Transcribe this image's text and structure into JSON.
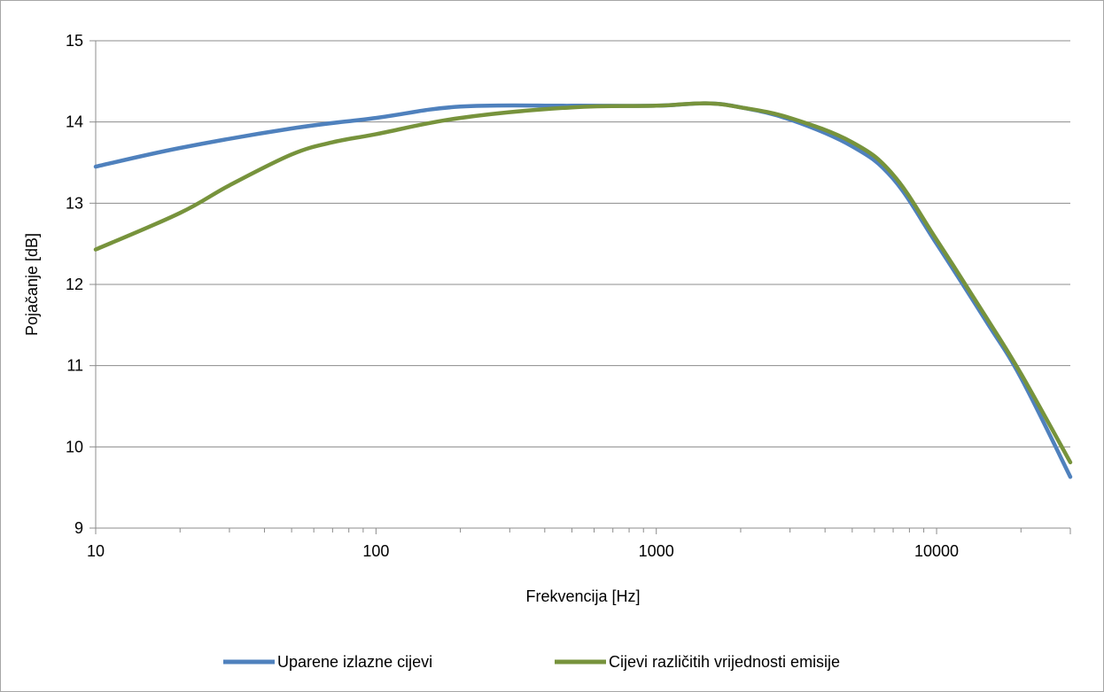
{
  "chart_data": {
    "type": "line",
    "title": "",
    "xlabel": "Frekvencija [Hz]",
    "ylabel": "Pojačanje [dB]",
    "x_scale": "log",
    "xlim": [
      10,
      30000
    ],
    "ylim": [
      9,
      15
    ],
    "x_ticks": [
      10,
      100,
      1000,
      10000
    ],
    "x_tick_labels": [
      "10",
      "100",
      "1000",
      "10000"
    ],
    "y_ticks": [
      9,
      10,
      11,
      12,
      13,
      14,
      15
    ],
    "y_tick_labels": [
      "9",
      "10",
      "11",
      "12",
      "13",
      "14",
      "15"
    ],
    "grid": "horizontal major",
    "legend_position": "bottom",
    "series": [
      {
        "name": "Uparene izlazne cijevi",
        "color": "#4f81bd",
        "x": [
          10,
          20,
          50,
          100,
          200,
          500,
          1000,
          1500,
          2000,
          3000,
          5000,
          7000,
          10000,
          15000,
          20000,
          30000
        ],
        "y": [
          13.45,
          13.68,
          13.92,
          14.05,
          14.19,
          14.2,
          14.2,
          14.23,
          14.18,
          14.03,
          13.7,
          13.3,
          12.5,
          11.55,
          10.85,
          9.63
        ]
      },
      {
        "name": "Cijevi različitih vrijednosti emisije",
        "color": "#77933c",
        "x": [
          10,
          20,
          30,
          50,
          70,
          100,
          200,
          500,
          1000,
          1500,
          2000,
          3000,
          5000,
          7000,
          10000,
          15000,
          20000,
          30000
        ],
        "y": [
          12.43,
          12.88,
          13.22,
          13.6,
          13.75,
          13.85,
          14.05,
          14.18,
          14.2,
          14.23,
          14.18,
          14.05,
          13.75,
          13.35,
          12.55,
          11.6,
          10.9,
          9.81
        ]
      }
    ]
  }
}
